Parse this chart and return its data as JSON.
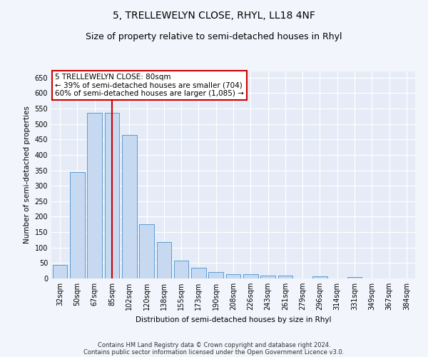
{
  "title": "5, TRELLEWELYN CLOSE, RHYL, LL18 4NF",
  "subtitle": "Size of property relative to semi-detached houses in Rhyl",
  "xlabel": "Distribution of semi-detached houses by size in Rhyl",
  "ylabel": "Number of semi-detached properties",
  "categories": [
    "32sqm",
    "50sqm",
    "67sqm",
    "85sqm",
    "102sqm",
    "120sqm",
    "138sqm",
    "155sqm",
    "173sqm",
    "190sqm",
    "208sqm",
    "226sqm",
    "243sqm",
    "261sqm",
    "279sqm",
    "296sqm",
    "314sqm",
    "331sqm",
    "349sqm",
    "367sqm",
    "384sqm"
  ],
  "values": [
    45,
    345,
    535,
    535,
    465,
    175,
    118,
    58,
    35,
    20,
    15,
    15,
    10,
    10,
    0,
    6,
    0,
    5,
    0,
    0,
    0
  ],
  "bar_color": "#c6d9f0",
  "bar_edgecolor": "#5b9bd5",
  "vline_x_index": 3,
  "vline_color": "#cc0000",
  "annotation_line1": "5 TRELLEWELYN CLOSE: 80sqm",
  "annotation_line2": "← 39% of semi-detached houses are smaller (704)",
  "annotation_line3": "60% of semi-detached houses are larger (1,085) →",
  "annotation_box_color": "#ffffff",
  "annotation_box_edgecolor": "#cc0000",
  "ylim": [
    0,
    670
  ],
  "yticks": [
    0,
    50,
    100,
    150,
    200,
    250,
    300,
    350,
    400,
    450,
    500,
    550,
    600,
    650
  ],
  "footer_line1": "Contains HM Land Registry data © Crown copyright and database right 2024.",
  "footer_line2": "Contains public sector information licensed under the Open Government Licence v3.0.",
  "bg_color": "#f2f5fb",
  "plot_bg_color": "#e6ecf7",
  "grid_color": "#ffffff",
  "title_fontsize": 10,
  "subtitle_fontsize": 9,
  "axis_label_fontsize": 7.5,
  "tick_fontsize": 7,
  "footer_fontsize": 6,
  "annotation_fontsize": 7.5
}
